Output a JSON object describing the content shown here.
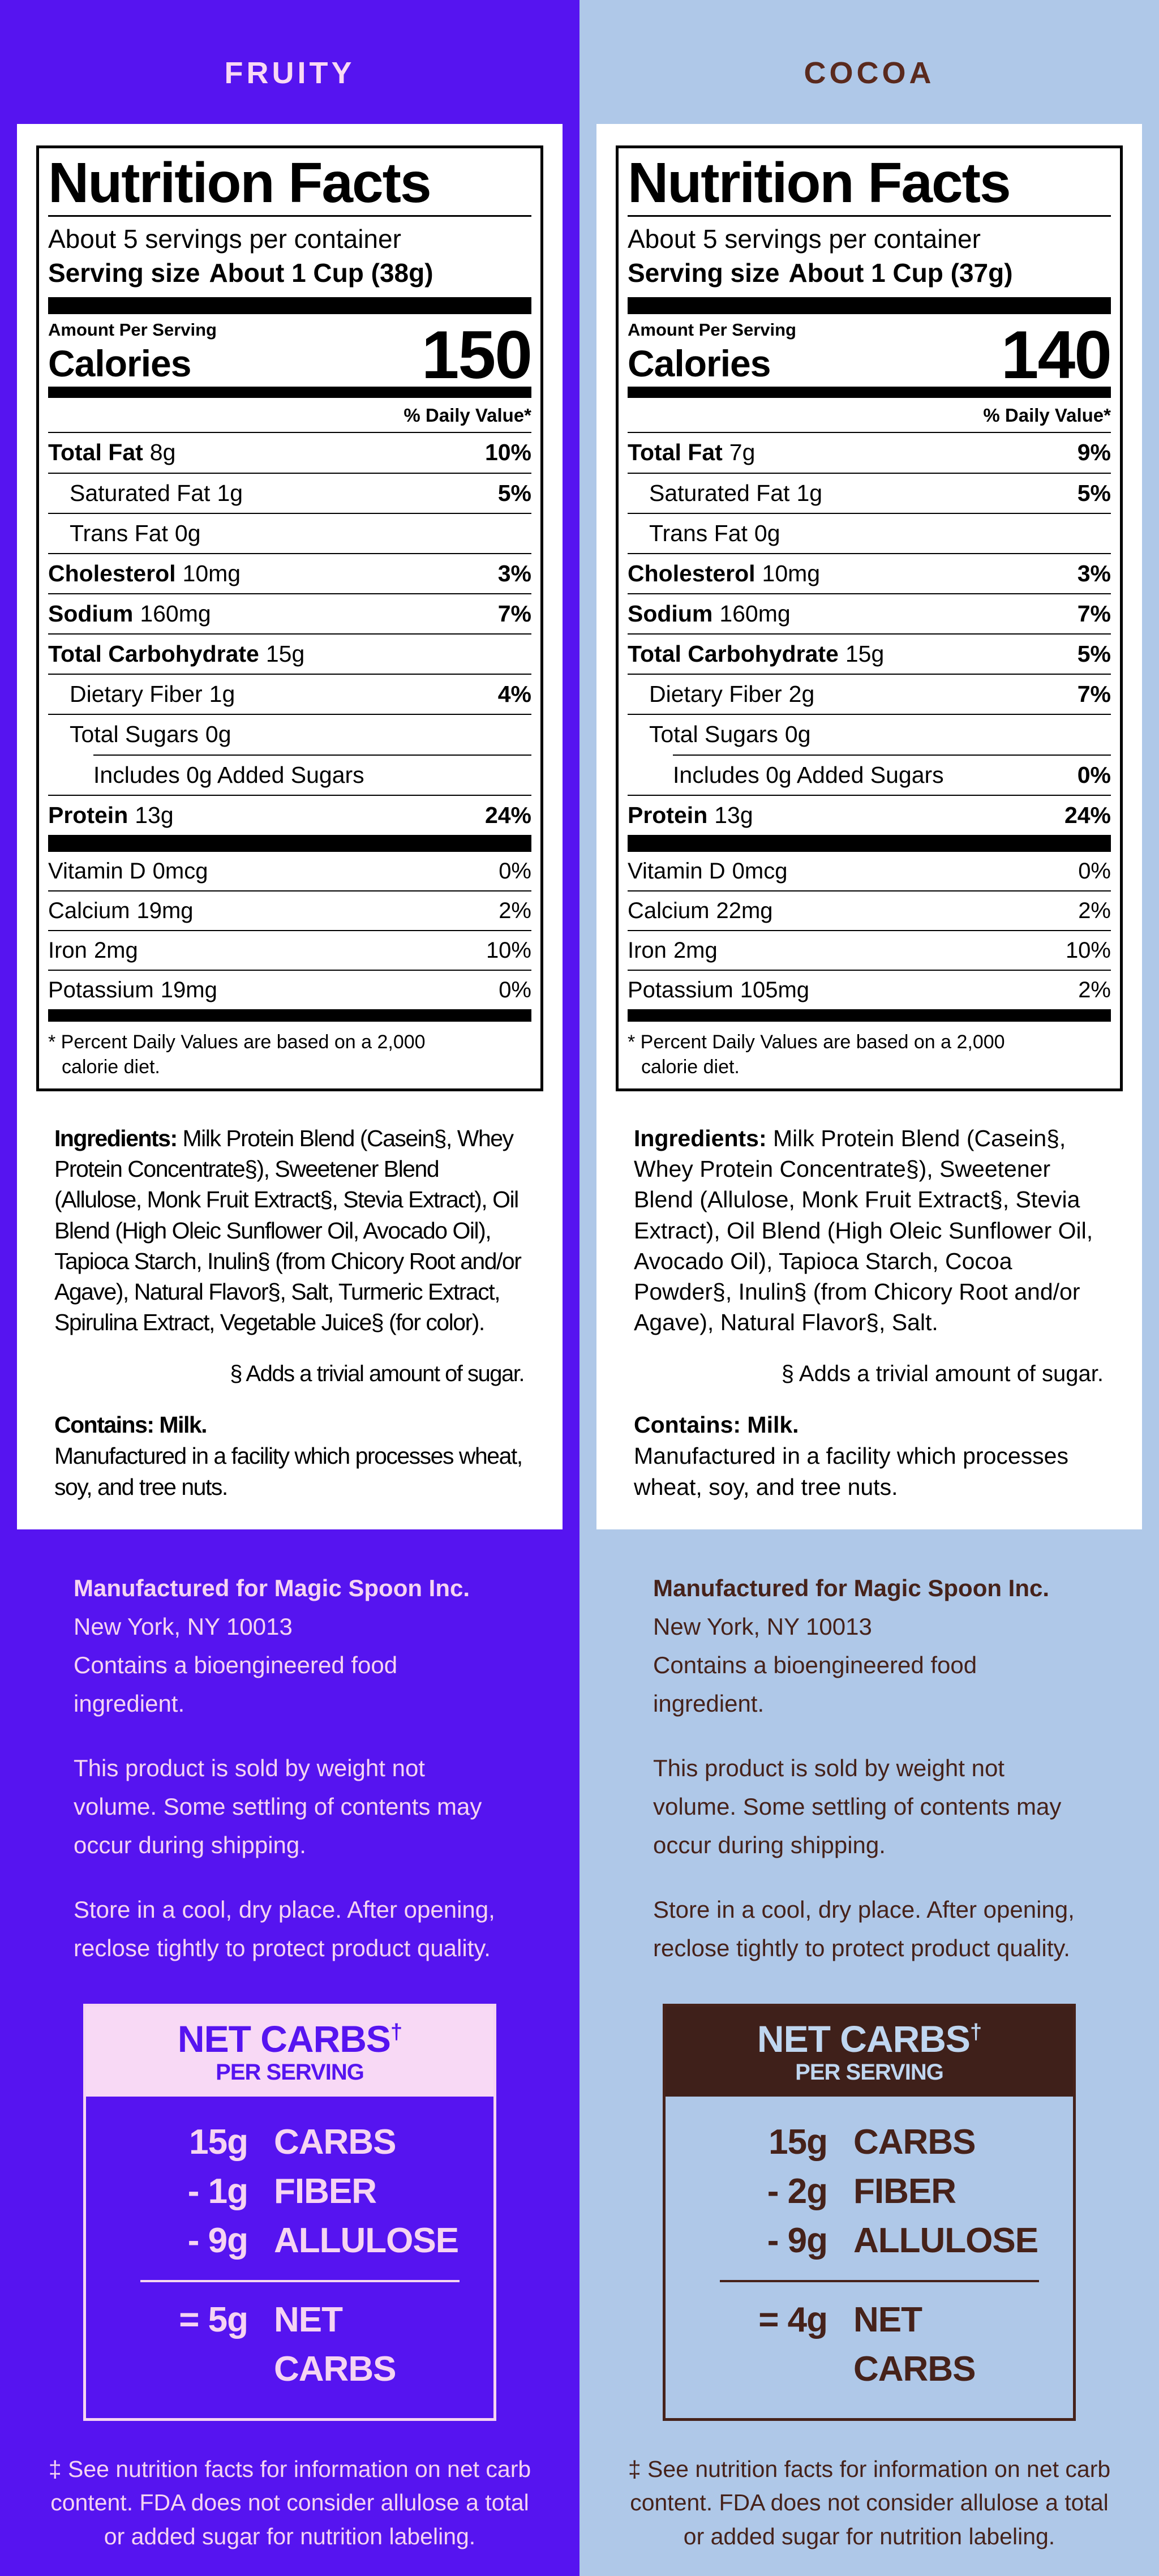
{
  "panels": [
    {
      "title": "FRUITY",
      "colors": {
        "background": "#5614F0",
        "accent_text": "#F6D4F2",
        "net_carbs_header_bg": "#F8D9F5",
        "net_carbs_header_text": "#5614F0"
      },
      "label": {
        "title": "Nutrition Facts",
        "servings": "About 5 servings per container",
        "serving_size_label": "Serving size",
        "serving_size_value": "About 1 Cup (38g)",
        "amount_per_serving": "Amount Per Serving",
        "calories_label": "Calories",
        "calories_value": "150",
        "daily_value_header": "% Daily Value*",
        "rows": [
          {
            "name": "Total Fat",
            "qty": "8g",
            "dv": "10%"
          },
          {
            "name": "Saturated Fat",
            "qty": "1g",
            "dv": "5%"
          },
          {
            "name": "Trans Fat",
            "qty": "0g",
            "dv": ""
          },
          {
            "name": "Cholesterol",
            "qty": "10mg",
            "dv": "3%"
          },
          {
            "name": "Sodium",
            "qty": "160mg",
            "dv": "7%"
          },
          {
            "name": "Total Carbohydrate",
            "qty": "15g",
            "dv": ""
          },
          {
            "name": "Dietary Fiber",
            "qty": "1g",
            "dv": "4%"
          },
          {
            "name": "Total Sugars",
            "qty": "0g",
            "dv": ""
          },
          {
            "name": "Includes 0g Added Sugars",
            "qty": "",
            "dv": ""
          },
          {
            "name": "Protein",
            "qty": "13g",
            "dv": "24%"
          }
        ],
        "micros": [
          {
            "name": "Vitamin D",
            "qty": "0mcg",
            "dv": "0%"
          },
          {
            "name": "Calcium",
            "qty": "19mg",
            "dv": "2%"
          },
          {
            "name": "Iron",
            "qty": "2mg",
            "dv": "10%"
          },
          {
            "name": "Potassium",
            "qty": "19mg",
            "dv": "0%"
          }
        ],
        "footnote": "* Percent Daily Values are based on a 2,000 calorie diet."
      },
      "ingredients_lead": "Ingredients:",
      "ingredients_text": " Milk Protein Blend (Casein§, Whey Protein Concentrate§), Sweetener Blend (Allulose, Monk Fruit Extract§, Stevia Extract), Oil Blend (High Oleic Sunflower Oil, Avocado Oil), Tapioca Starch, Inulin§ (from Chicory Root and/or Agave), Natural Flavor§, Salt, Turmeric Extract, Spirulina Extract, Vegetable Juice§ (for color).",
      "trivial": "§ Adds a trivial amount of sugar.",
      "contains": "Contains: Milk.",
      "facility": "Manufactured in a facility which processes wheat, soy, and tree nuts.",
      "mid": {
        "manufacturer": "Manufactured for Magic Spoon Inc.",
        "address": "New York, NY 10013",
        "bioengineered": "Contains a bioengineered food ingredient.",
        "sold": "This product is sold by weight not volume. Some settling of contents may occur during shipping.",
        "store": "Store in a cool, dry place. After opening, reclose tightly to protect product quality."
      },
      "net_carbs": {
        "title": "NET CARBS",
        "dagger": "†",
        "subtitle": "PER SERVING",
        "rows": [
          {
            "qty": "15g",
            "label": "CARBS"
          },
          {
            "qty": "- 1g",
            "label": "FIBER"
          },
          {
            "qty": "- 9g",
            "label": "ALLULOSE"
          }
        ],
        "total_qty": "= 5g",
        "total_label": "NET CARBS"
      },
      "footnote": "‡ See nutrition facts for information on net carb content. FDA does not consider allulose a total or added sugar for nutrition labeling."
    },
    {
      "title": "COCOA",
      "colors": {
        "background": "#AFC8E8",
        "accent_text": "#46221A",
        "net_carbs_header_bg": "#3F201A",
        "net_carbs_header_text": "#BFD6F0"
      },
      "label": {
        "title": "Nutrition Facts",
        "servings": "About 5 servings per container",
        "serving_size_label": "Serving size",
        "serving_size_value": "About 1 Cup (37g)",
        "amount_per_serving": "Amount Per Serving",
        "calories_label": "Calories",
        "calories_value": "140",
        "daily_value_header": "% Daily Value*",
        "rows": [
          {
            "name": "Total Fat",
            "qty": "7g",
            "dv": "9%"
          },
          {
            "name": "Saturated Fat",
            "qty": "1g",
            "dv": "5%"
          },
          {
            "name": "Trans Fat",
            "qty": "0g",
            "dv": ""
          },
          {
            "name": "Cholesterol",
            "qty": "10mg",
            "dv": "3%"
          },
          {
            "name": "Sodium",
            "qty": "160mg",
            "dv": "7%"
          },
          {
            "name": "Total Carbohydrate",
            "qty": "15g",
            "dv": "5%"
          },
          {
            "name": "Dietary Fiber",
            "qty": "2g",
            "dv": "7%"
          },
          {
            "name": "Total Sugars",
            "qty": "0g",
            "dv": ""
          },
          {
            "name": "Includes 0g Added Sugars",
            "qty": "",
            "dv": "0%"
          },
          {
            "name": "Protein",
            "qty": "13g",
            "dv": "24%"
          }
        ],
        "micros": [
          {
            "name": "Vitamin D",
            "qty": "0mcg",
            "dv": "0%"
          },
          {
            "name": "Calcium",
            "qty": "22mg",
            "dv": "2%"
          },
          {
            "name": "Iron",
            "qty": "2mg",
            "dv": "10%"
          },
          {
            "name": "Potassium",
            "qty": "105mg",
            "dv": "2%"
          }
        ],
        "footnote": "* Percent Daily Values are based on a 2,000 calorie diet."
      },
      "ingredients_lead": "Ingredients:",
      "ingredients_text": " Milk Protein Blend (Casein§, Whey Protein Concentrate§), Sweetener Blend (Allulose, Monk Fruit Extract§, Stevia Extract), Oil Blend (High Oleic Sunflower Oil, Avocado Oil), Tapioca Starch, Cocoa Powder§, Inulin§ (from Chicory Root and/or Agave), Natural Flavor§, Salt.",
      "trivial": "§ Adds a trivial amount of sugar.",
      "contains": "Contains: Milk.",
      "facility": "Manufactured in a facility which processes wheat, soy, and tree nuts.",
      "mid": {
        "manufacturer": "Manufactured for Magic Spoon Inc.",
        "address": "New York, NY 10013",
        "bioengineered": "Contains a bioengineered food ingredient.",
        "sold": "This product is sold by weight not volume. Some settling of contents may occur during shipping.",
        "store": "Store in a cool, dry place. After opening, reclose tightly to protect product quality."
      },
      "net_carbs": {
        "title": "NET CARBS",
        "dagger": "†",
        "subtitle": "PER SERVING",
        "rows": [
          {
            "qty": "15g",
            "label": "CARBS"
          },
          {
            "qty": "- 2g",
            "label": "FIBER"
          },
          {
            "qty": "- 9g",
            "label": "ALLULOSE"
          }
        ],
        "total_qty": "= 4g",
        "total_label": "NET CARBS"
      },
      "footnote": "‡ See nutrition facts for information on net carb content. FDA does not consider allulose a total or added sugar for nutrition labeling."
    }
  ]
}
